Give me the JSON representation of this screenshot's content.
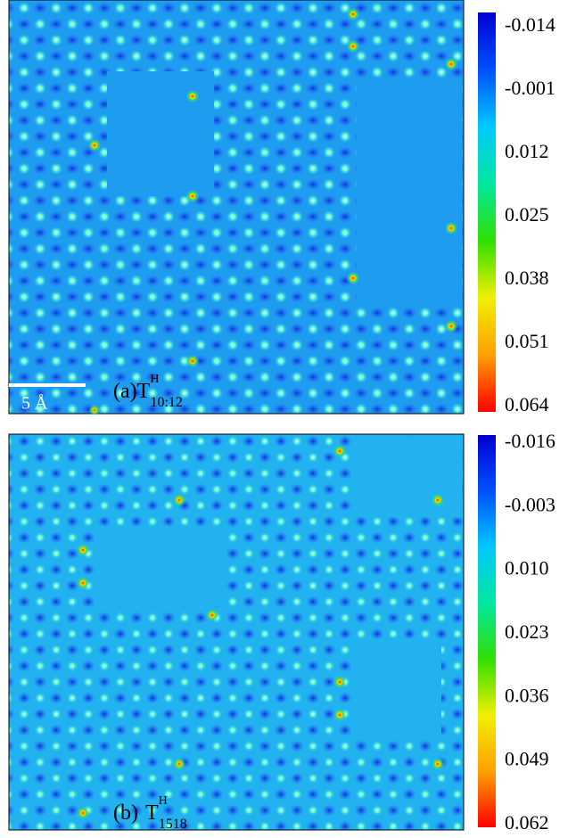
{
  "chart_data": [
    {
      "type": "heatmap",
      "label": "(a)",
      "symbol": "T",
      "superscript": "H",
      "subscript": "10:12",
      "scale_bar": "5 Å",
      "colormap": [
        "#0000d0",
        "#0050ff",
        "#00c8ff",
        "#00e8a0",
        "#30e000",
        "#f0f000",
        "#ffa000",
        "#ff0000"
      ],
      "zlim": [
        -0.014,
        0.064
      ],
      "zticks": [
        -0.014,
        -0.001,
        0.012,
        0.025,
        0.038,
        0.051,
        0.064
      ]
    },
    {
      "type": "heatmap",
      "label": "(b)",
      "symbol": "T",
      "superscript": "H",
      "subscript": "1518",
      "colormap": [
        "#0000d0",
        "#0050ff",
        "#00c8ff",
        "#00e8a0",
        "#30e000",
        "#f0f000",
        "#ffa000",
        "#ff0000"
      ],
      "zlim": [
        -0.016,
        0.062
      ],
      "zticks": [
        -0.016,
        -0.003,
        {
          "value": 0.01,
          "label": "0.010"
        },
        0.023,
        0.036,
        0.049,
        0.062
      ]
    }
  ]
}
